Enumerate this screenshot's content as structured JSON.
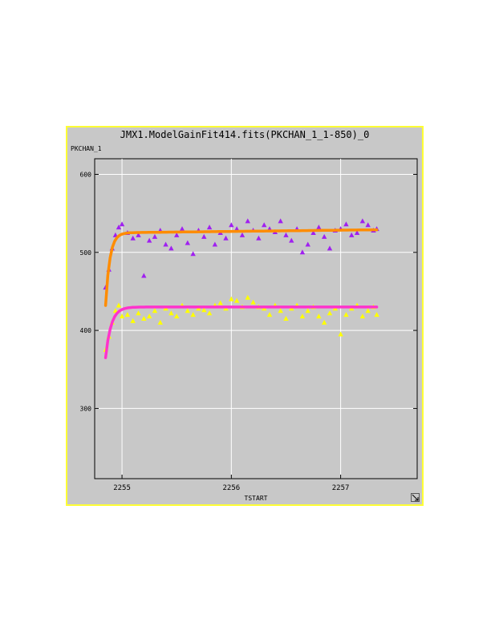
{
  "window": {
    "title": "JMX1.ModelGainFit414.fits(PKCHAN_1_1-850)_0"
  },
  "chart_data": {
    "type": "scatter",
    "title": "JMX1.ModelGainFit414.fits(PKCHAN_1_1-850)_0",
    "xlabel": "TSTART",
    "ylabel": "PKCHAN_1",
    "xlim": [
      2254.75,
      2257.7
    ],
    "ylim": [
      210,
      620
    ],
    "xticks": [
      2255,
      2256,
      2257
    ],
    "yticks": [
      300,
      400,
      500,
      600
    ],
    "grid": true,
    "colors": {
      "background": "#c8c8c8",
      "frame": "#ffff33",
      "grid": "#ffffff",
      "series1": "#a020f0",
      "series2": "#ffff00",
      "fit1": "#ff8c00",
      "fit2": "#ff33cc"
    },
    "series": [
      {
        "marker": "triangle",
        "color": "#a020f0",
        "x": [
          2254.85,
          2254.88,
          2254.91,
          2254.94,
          2254.97,
          2255.0,
          2255.05,
          2255.1,
          2255.15,
          2255.2,
          2255.25,
          2255.3,
          2255.35,
          2255.4,
          2255.45,
          2255.5,
          2255.55,
          2255.6,
          2255.65,
          2255.7,
          2255.75,
          2255.8,
          2255.85,
          2255.9,
          2255.95,
          2256.0,
          2256.05,
          2256.1,
          2256.15,
          2256.2,
          2256.25,
          2256.3,
          2256.35,
          2256.4,
          2256.45,
          2256.5,
          2256.55,
          2256.6,
          2256.65,
          2256.7,
          2256.75,
          2256.8,
          2256.85,
          2256.9,
          2256.95,
          2257.0,
          2257.05,
          2257.1,
          2257.15,
          2257.2,
          2257.25,
          2257.3,
          2257.33
        ],
        "y": [
          455,
          478,
          505,
          522,
          532,
          536,
          525,
          518,
          522,
          470,
          515,
          520,
          528,
          510,
          505,
          522,
          530,
          512,
          498,
          528,
          520,
          532,
          510,
          525,
          518,
          535,
          530,
          522,
          540,
          528,
          518,
          535,
          530,
          526,
          540,
          522,
          515,
          530,
          500,
          510,
          525,
          532,
          520,
          505,
          528,
          530,
          536,
          522,
          525,
          540,
          535,
          528,
          530
        ]
      },
      {
        "marker": "triangle",
        "color": "#ffff00",
        "x": [
          2254.85,
          2254.88,
          2254.91,
          2254.94,
          2254.97,
          2255.0,
          2255.05,
          2255.1,
          2255.15,
          2255.2,
          2255.25,
          2255.3,
          2255.35,
          2255.4,
          2255.45,
          2255.5,
          2255.55,
          2255.6,
          2255.65,
          2255.7,
          2255.75,
          2255.8,
          2255.85,
          2255.9,
          2255.95,
          2256.0,
          2256.05,
          2256.1,
          2256.15,
          2256.2,
          2256.25,
          2256.3,
          2256.35,
          2256.4,
          2256.45,
          2256.5,
          2256.55,
          2256.6,
          2256.65,
          2256.7,
          2256.75,
          2256.8,
          2256.85,
          2256.9,
          2256.95,
          2257.0,
          2257.05,
          2257.1,
          2257.15,
          2257.2,
          2257.25,
          2257.3,
          2257.33
        ],
        "y": [
          375,
          392,
          410,
          425,
          432,
          418,
          420,
          412,
          422,
          415,
          418,
          425,
          410,
          428,
          422,
          418,
          432,
          425,
          420,
          428,
          426,
          422,
          432,
          435,
          428,
          440,
          438,
          430,
          442,
          436,
          430,
          428,
          420,
          432,
          425,
          415,
          428,
          432,
          418,
          425,
          430,
          418,
          410,
          422,
          428,
          395,
          420,
          428,
          432,
          418,
          425,
          430,
          420
        ]
      }
    ],
    "fits": [
      {
        "color": "#ff8c00",
        "asymptote": 525,
        "start": 432,
        "rate": 26,
        "drift": 4
      },
      {
        "color": "#ff33cc",
        "asymptote": 430,
        "start": 365,
        "rate": 20,
        "drift": 0
      }
    ]
  }
}
